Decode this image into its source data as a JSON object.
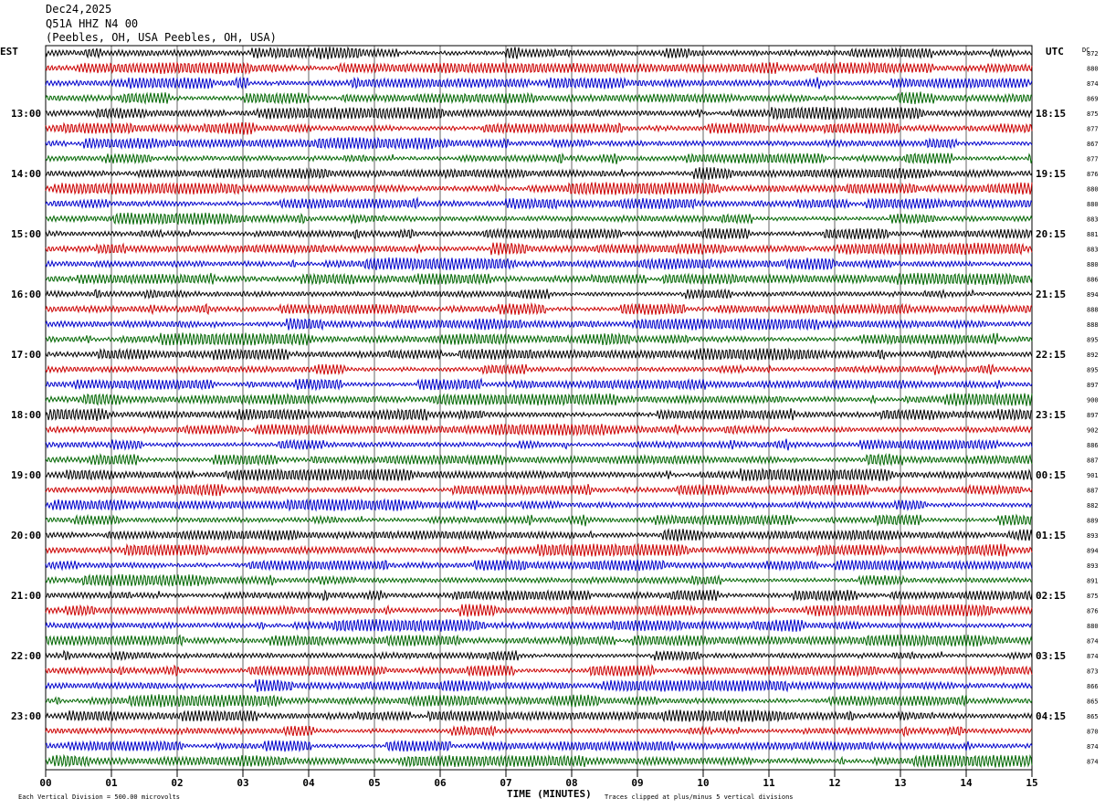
{
  "header": {
    "date": "Dec24,2025",
    "station": "Q51A HHZ N4 00",
    "location": "(Peebles, OH, USA Peebles, OH, USA)"
  },
  "chart_data": {
    "type": "line",
    "title": "",
    "left_axis_label": "EST",
    "right_axis_label": "UTC",
    "dc_label": "DC",
    "xlabel": "TIME (MINUTES)",
    "x_ticks": [
      "00",
      "01",
      "02",
      "03",
      "04",
      "05",
      "06",
      "07",
      "08",
      "09",
      "10",
      "11",
      "12",
      "13",
      "14",
      "15"
    ],
    "xlim": [
      0,
      15
    ],
    "trace_colors": [
      "#000000",
      "#cc0000",
      "#0000cc",
      "#006600"
    ],
    "traces_per_hour": 4,
    "left_hour_labels": [
      "13:00",
      "14:00",
      "15:00",
      "16:00",
      "17:00",
      "18:00",
      "19:00",
      "20:00",
      "21:00",
      "22:00",
      "23:00"
    ],
    "right_hour_labels": [
      "18:15",
      "19:15",
      "20:15",
      "21:15",
      "22:15",
      "23:15",
      "00:15",
      "01:15",
      "02:15",
      "03:15",
      "04:15"
    ],
    "dc_offsets": [
      872,
      880,
      874,
      869,
      875,
      877,
      867,
      877,
      876,
      880,
      880,
      883,
      881,
      883,
      880,
      886,
      894,
      888,
      888,
      895,
      892,
      895,
      897,
      900,
      897,
      902,
      886,
      887,
      901,
      887,
      882,
      889,
      893,
      894,
      893,
      891,
      875,
      876,
      880,
      874,
      874,
      873,
      866,
      865,
      865,
      870,
      874,
      874
    ],
    "footer_left": "Each Vertical Division =  500.00 microvolts",
    "footer_right": "Traces clipped at plus/minus 5 vertical divisions"
  }
}
